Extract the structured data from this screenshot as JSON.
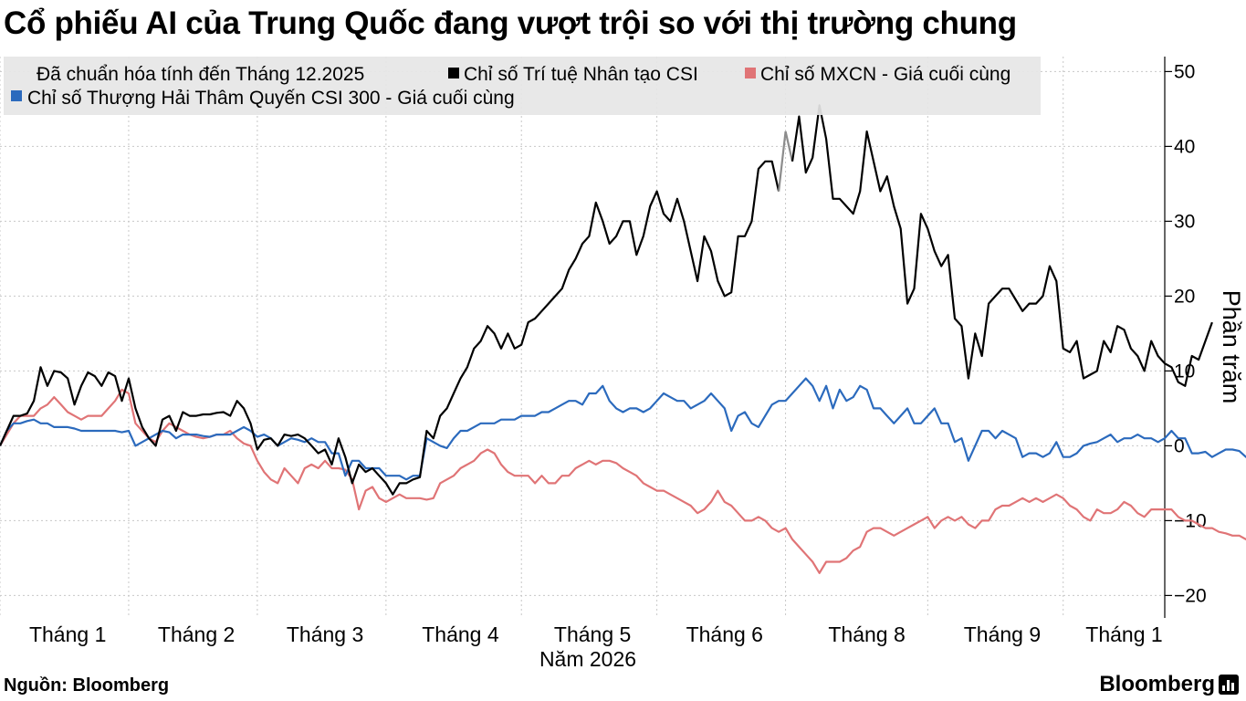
{
  "title": "Cổ phiếu AI của Trung Quốc đang vượt trội so với thị trường chung",
  "source": "Nguồn:  Bloomberg",
  "logo": "Bloomberg",
  "chart_data": {
    "type": "line",
    "legend_note": "Đã chuẩn hóa tính đến Tháng 12.2025",
    "ylabel": "Phần trăm",
    "ylim": [
      -23,
      52
    ],
    "yticks": [
      -20,
      -10,
      0,
      10,
      20,
      30,
      40,
      50
    ],
    "ytick_labels": [
      "−20",
      "−10",
      "0",
      "10",
      "20",
      "30",
      "40",
      "50"
    ],
    "xlim": [
      0,
      172
    ],
    "xticks": [
      {
        "label": "Tháng 1",
        "at": 10
      },
      {
        "label": "Tháng 2",
        "at": 29
      },
      {
        "label": "Tháng 3",
        "at": 48
      },
      {
        "label": "Tháng 4",
        "at": 68
      },
      {
        "label": "Tháng 5",
        "at": 87.5
      },
      {
        "label": "Tháng 6",
        "at": 107
      },
      {
        "label": "Tháng 8",
        "at": 128
      },
      {
        "label": "Tháng 9",
        "at": 148
      },
      {
        "label": "Tháng 1",
        "at": 166
      }
    ],
    "xgrid": [
      0,
      19,
      38,
      57,
      77,
      97,
      116,
      137,
      157
    ],
    "year_label": "Năm 2026",
    "highlight_index": 116,
    "grid": true,
    "legend_position": "top-left",
    "series": [
      {
        "name": "Chỉ số Trí tuệ Nhân tạo CSI",
        "color": "#000000",
        "highlight_color": "#8c8c8c",
        "values": [
          0,
          2,
          4,
          4,
          4.3,
          6,
          10.5,
          8,
          10,
          9.8,
          9,
          5.5,
          8,
          9.8,
          9.3,
          8,
          9.8,
          9.3,
          6,
          9,
          5,
          2.5,
          1,
          0,
          3.5,
          4,
          2,
          4.5,
          4,
          4,
          4.2,
          4.2,
          4.4,
          4.5,
          4,
          6,
          5,
          3,
          -0.5,
          0.8,
          1,
          0,
          1.5,
          1.3,
          1.5,
          1,
          0,
          -1,
          -0.5,
          -2.5,
          1,
          -1.5,
          -5,
          -2.5,
          -3.5,
          -3,
          -4,
          -5,
          -6.5,
          -5,
          -5,
          -4.5,
          -4.2,
          2,
          1,
          4,
          5,
          7,
          9,
          10.5,
          13,
          14,
          16,
          15,
          13,
          15,
          13,
          13.5,
          16.5,
          17,
          18,
          19,
          20,
          21,
          23.5,
          25,
          27,
          28,
          32.5,
          30,
          27,
          28,
          30,
          30,
          25.5,
          28,
          32,
          34,
          31,
          30,
          33,
          30,
          26,
          22,
          28,
          26,
          22,
          20,
          20.5,
          28,
          28,
          30,
          37,
          38,
          38,
          34,
          42,
          38,
          44,
          36.5,
          38.5,
          45.5,
          41,
          33,
          33,
          32,
          31,
          34,
          42,
          38,
          34,
          36,
          32,
          29,
          19,
          21,
          31,
          29,
          26,
          24,
          25.5,
          17,
          16,
          9,
          15,
          12,
          19,
          20,
          21,
          21,
          19.5,
          18,
          19,
          19,
          20,
          24,
          22,
          13,
          12.5,
          14,
          9,
          9.5,
          10,
          14,
          12.5,
          16,
          15.5,
          13,
          12,
          10,
          14,
          12,
          11,
          10.5,
          8.5,
          8,
          12,
          11.5,
          14,
          16.5
        ]
      },
      {
        "name": "Chỉ số MXCN - Giá cuối cùng",
        "color": "#e07476",
        "values": [
          0,
          1.5,
          3,
          4,
          4,
          4,
          5,
          5.5,
          6.5,
          5.5,
          4.5,
          4,
          3.5,
          4,
          4,
          4,
          5,
          6,
          7.5,
          7,
          3,
          2,
          1,
          0.5,
          2,
          3,
          2.5,
          2,
          1.5,
          1.2,
          1,
          1.2,
          1.5,
          1.5,
          2,
          1,
          0.3,
          0,
          -2,
          -3.5,
          -4.5,
          -5,
          -3,
          -4,
          -5,
          -3,
          -2.5,
          -3,
          -2,
          -3,
          -3,
          -3.2,
          -4.5,
          -8.5,
          -6,
          -5.5,
          -7,
          -7.5,
          -7,
          -6.5,
          -7,
          -7,
          -7,
          -7.2,
          -7,
          -5,
          -4.5,
          -4,
          -3,
          -2.5,
          -2,
          -1,
          -0.5,
          -1,
          -2.5,
          -3.5,
          -4,
          -4,
          -4,
          -5,
          -4,
          -5,
          -5,
          -4,
          -4,
          -3,
          -2.5,
          -2,
          -2.5,
          -2,
          -2,
          -2.3,
          -3,
          -3.5,
          -4,
          -5,
          -5.5,
          -6,
          -6,
          -6.5,
          -7,
          -7.5,
          -8,
          -9,
          -8.5,
          -7.5,
          -6,
          -7.5,
          -8,
          -9,
          -10,
          -10,
          -9.5,
          -10,
          -11,
          -11.5,
          -11,
          -12.5,
          -13.5,
          -14.5,
          -15.5,
          -17,
          -15.5,
          -15.5,
          -15.5,
          -15,
          -14,
          -13.5,
          -11.5,
          -11,
          -11,
          -11.5,
          -12,
          -11.5,
          -11,
          -10.5,
          -10,
          -9.5,
          -11,
          -10,
          -9.5,
          -10,
          -9.5,
          -10.5,
          -11,
          -10,
          -10,
          -8.5,
          -8,
          -8,
          -7.5,
          -7,
          -7.5,
          -7,
          -7.5,
          -7,
          -6.5,
          -7,
          -8,
          -8.5,
          -9.5,
          -10,
          -8.5,
          -9,
          -9,
          -8.5,
          -7.5,
          -8,
          -9,
          -9.5,
          -8.5,
          -8.5,
          -8.5,
          -8.5,
          -9.5,
          -10,
          -10,
          -10.5,
          -11,
          -11,
          -11.5,
          -11.7,
          -12,
          -12,
          -12.5,
          -12,
          -11.5
        ]
      },
      {
        "name": "Chỉ số Thượng Hải Thâm Quyến CSI 300 - Giá cuối cùng",
        "color": "#2b6abd",
        "values": [
          0,
          2,
          3,
          3,
          3.3,
          3.5,
          3,
          3,
          2.5,
          2.5,
          2.5,
          2.3,
          2,
          2,
          2,
          2,
          2,
          2,
          1.8,
          2,
          0,
          0.5,
          1,
          1.5,
          2,
          1.8,
          1,
          1.5,
          1.5,
          1.5,
          1.3,
          1.2,
          1.5,
          1.5,
          1.5,
          2,
          2.5,
          2,
          1.2,
          1.5,
          1,
          0,
          0.5,
          1,
          0.8,
          0.5,
          1,
          0.5,
          0.5,
          -1,
          -1,
          -4,
          -2,
          -2,
          -3,
          -3,
          -3,
          -4,
          -4,
          -4,
          -4.5,
          -4,
          -4,
          1,
          0.5,
          0,
          -0.3,
          1,
          2,
          2,
          2.5,
          3,
          3,
          3,
          3.5,
          3.5,
          3.5,
          4,
          4,
          4,
          4.5,
          4.5,
          5,
          5.5,
          6,
          6,
          5.5,
          7,
          7,
          8,
          6,
          5,
          4.5,
          5,
          5,
          4.5,
          5,
          6,
          7,
          6.5,
          6,
          6,
          5,
          5.5,
          6,
          7,
          6,
          5,
          2,
          4,
          4.5,
          3,
          2.5,
          4,
          5.5,
          6,
          6,
          7,
          8,
          9,
          8,
          6,
          8,
          5,
          7.5,
          6,
          6.5,
          8,
          7.5,
          5,
          5,
          4,
          3,
          4,
          5,
          3,
          3,
          4,
          5,
          3,
          3,
          0.5,
          1,
          -2,
          0,
          2,
          2,
          1,
          2,
          1.5,
          1,
          -1.5,
          -1,
          -1,
          -1.5,
          -1,
          0.5,
          -1.5,
          -1.5,
          -1,
          0,
          0.3,
          0.5,
          1,
          1.5,
          0.5,
          1,
          1,
          1.5,
          1,
          1,
          0.5,
          1,
          2,
          1,
          1,
          -1,
          -1,
          -0.8,
          -1.5,
          -1,
          -0.5,
          -0.5,
          -0.7,
          -1.5,
          -0.8,
          -0.5,
          -1,
          -1.5,
          -1.5,
          -1.5,
          -1,
          -1,
          -1.5,
          -1.5,
          -1,
          -1.5,
          -1.5,
          -2,
          -3,
          -3.5,
          -4,
          -3.5,
          -3,
          -3,
          -2
        ]
      }
    ]
  }
}
